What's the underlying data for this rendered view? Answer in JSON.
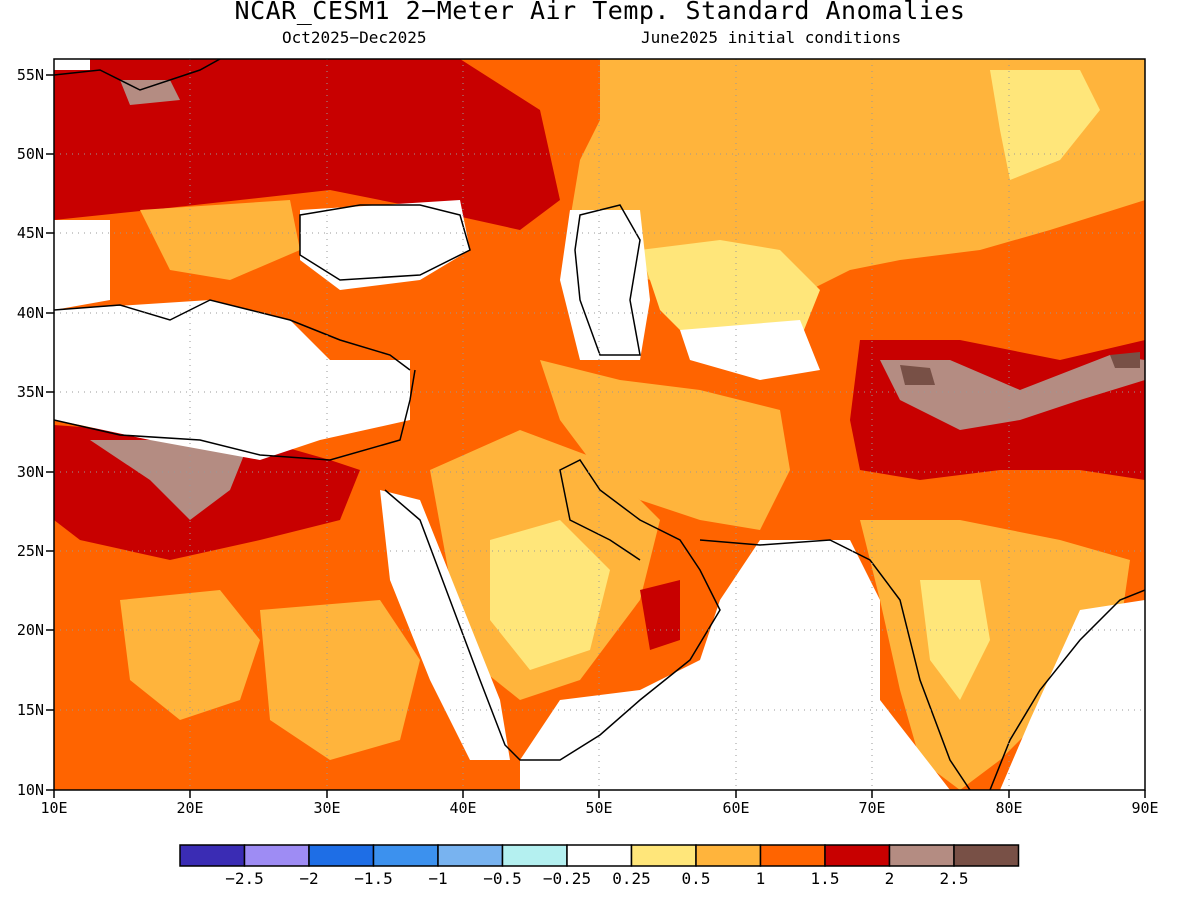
{
  "title": "NCAR_CESM1 2−Meter Air Temp. Standard Anomalies",
  "subtitle_left": "Oct2025−Dec2025",
  "subtitle_right": "June2025 initial conditions",
  "lat_ticks": [
    "55N",
    "50N",
    "45N",
    "40N",
    "35N",
    "30N",
    "25N",
    "20N",
    "15N",
    "10N"
  ],
  "lon_ticks": [
    "10E",
    "20E",
    "30E",
    "40E",
    "50E",
    "60E",
    "70E",
    "80E",
    "90E"
  ],
  "colorbar": {
    "colors": [
      "#3a2cb4",
      "#9e8cf4",
      "#1e6ee6",
      "#3c91ee",
      "#78b3f0",
      "#b4f0f0",
      "#ffffff",
      "#ffe67a",
      "#ffb43c",
      "#ff6400",
      "#c80000",
      "#b48c82",
      "#785046"
    ],
    "labels": [
      "−2.5",
      "−2",
      "−1.5",
      "−1",
      "−0.5",
      "−0.25",
      "0.25",
      "0.5",
      "1",
      "1.5",
      "2",
      "2.5"
    ]
  },
  "icons": {
    "map": "anomaly-map"
  }
}
